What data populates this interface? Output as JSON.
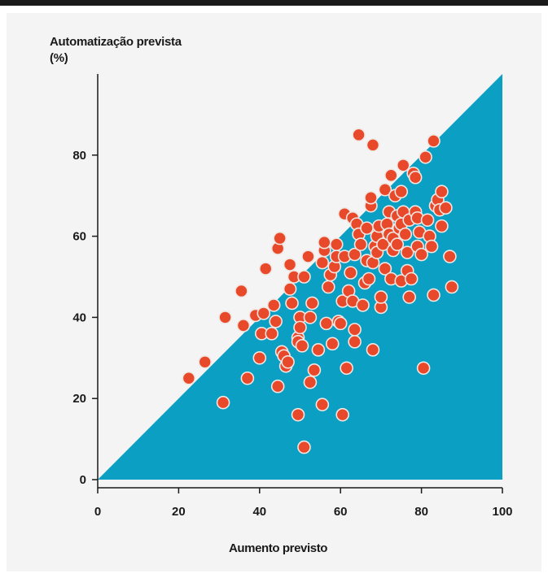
{
  "chart_data": {
    "type": "scatter",
    "title": "",
    "ylabel_lines": [
      "Automatização prevista",
      "(%)"
    ],
    "xlabel": "Aumento previsto",
    "xlim": [
      0,
      100
    ],
    "ylim": [
      0,
      100
    ],
    "x_ticks": [
      0,
      20,
      40,
      60,
      80,
      100
    ],
    "y_ticks": [
      0,
      20,
      40,
      60,
      80
    ],
    "grid": false,
    "legend": "none",
    "area_fill": {
      "description": "region below y = x",
      "color": "#0a9fc3"
    },
    "point_color": "#e8492a",
    "points": [
      [
        22.5,
        25
      ],
      [
        26.5,
        29
      ],
      [
        31,
        19
      ],
      [
        31.5,
        40
      ],
      [
        35.5,
        46.5
      ],
      [
        36,
        38
      ],
      [
        37,
        25
      ],
      [
        39,
        40.5
      ],
      [
        40,
        30
      ],
      [
        40.5,
        36
      ],
      [
        41,
        41
      ],
      [
        41.5,
        52
      ],
      [
        43,
        36
      ],
      [
        43.5,
        43
      ],
      [
        44,
        39
      ],
      [
        44.5,
        23
      ],
      [
        44.5,
        57
      ],
      [
        45,
        59.5
      ],
      [
        45.5,
        31.5
      ],
      [
        46,
        30.5
      ],
      [
        46.5,
        28
      ],
      [
        47,
        29
      ],
      [
        47.5,
        47
      ],
      [
        47.5,
        53
      ],
      [
        48,
        43.5
      ],
      [
        48.5,
        50
      ],
      [
        49.5,
        16
      ],
      [
        49.5,
        35
      ],
      [
        49.5,
        34
      ],
      [
        50,
        40
      ],
      [
        50,
        37.5
      ],
      [
        50.5,
        33
      ],
      [
        51,
        8
      ],
      [
        51,
        50
      ],
      [
        52,
        55
      ],
      [
        52.5,
        40
      ],
      [
        52.5,
        24
      ],
      [
        53,
        43.5
      ],
      [
        53.5,
        27
      ],
      [
        54.5,
        32
      ],
      [
        55.5,
        18.5
      ],
      [
        55.5,
        53.5
      ],
      [
        56,
        56.5
      ],
      [
        56,
        58.5
      ],
      [
        56.5,
        38.5
      ],
      [
        57,
        47.5
      ],
      [
        57.5,
        50.5
      ],
      [
        58,
        33.5
      ],
      [
        58.5,
        52.5
      ],
      [
        59,
        55
      ],
      [
        59,
        58
      ],
      [
        59.5,
        39
      ],
      [
        60,
        38.5
      ],
      [
        60.5,
        16
      ],
      [
        60.5,
        44
      ],
      [
        61,
        65.5
      ],
      [
        61,
        55
      ],
      [
        61.5,
        27.5
      ],
      [
        62,
        46.5
      ],
      [
        62.5,
        51
      ],
      [
        63,
        64.5
      ],
      [
        63,
        44
      ],
      [
        63.5,
        34
      ],
      [
        63.5,
        37
      ],
      [
        63.5,
        55.5
      ],
      [
        64,
        63
      ],
      [
        64.5,
        85
      ],
      [
        64.5,
        60.5
      ],
      [
        65,
        58
      ],
      [
        65.5,
        43
      ],
      [
        66,
        48.5
      ],
      [
        66.5,
        62
      ],
      [
        66.5,
        54
      ],
      [
        67,
        49.5
      ],
      [
        67.5,
        67.5
      ],
      [
        67.5,
        69.5
      ],
      [
        68,
        82.5
      ],
      [
        68,
        32
      ],
      [
        68,
        53.5
      ],
      [
        68.5,
        57.5
      ],
      [
        69,
        60
      ],
      [
        69,
        56
      ],
      [
        69.5,
        62.5
      ],
      [
        70,
        42.5
      ],
      [
        70,
        45
      ],
      [
        70.5,
        58
      ],
      [
        71,
        71.5
      ],
      [
        71,
        52
      ],
      [
        71.5,
        63
      ],
      [
        72,
        66
      ],
      [
        72,
        60.5
      ],
      [
        72.5,
        75
      ],
      [
        72.5,
        49.5
      ],
      [
        73,
        59.5
      ],
      [
        73,
        56.5
      ],
      [
        73.5,
        70
      ],
      [
        74,
        58
      ],
      [
        74,
        65
      ],
      [
        74.5,
        62
      ],
      [
        75,
        71
      ],
      [
        75,
        63
      ],
      [
        75,
        49
      ],
      [
        75.5,
        77.5
      ],
      [
        75.5,
        66
      ],
      [
        76,
        60.5
      ],
      [
        76.5,
        51.5
      ],
      [
        76.5,
        56
      ],
      [
        77,
        64
      ],
      [
        77,
        45
      ],
      [
        77.5,
        49.5
      ],
      [
        78,
        75.5
      ],
      [
        78.5,
        74.5
      ],
      [
        78.5,
        66
      ],
      [
        79,
        64.5
      ],
      [
        79,
        57.5
      ],
      [
        79.5,
        61
      ],
      [
        80,
        55.5
      ],
      [
        80.5,
        27.5
      ],
      [
        81,
        79.5
      ],
      [
        81.5,
        64
      ],
      [
        82,
        60
      ],
      [
        82.5,
        57.5
      ],
      [
        83,
        83.5
      ],
      [
        83,
        45.5
      ],
      [
        83.5,
        67.5
      ],
      [
        84,
        69
      ],
      [
        84.5,
        66.5
      ],
      [
        85,
        71
      ],
      [
        85,
        62.5
      ],
      [
        86,
        67
      ],
      [
        87,
        55
      ],
      [
        87.5,
        47.5
      ]
    ]
  }
}
